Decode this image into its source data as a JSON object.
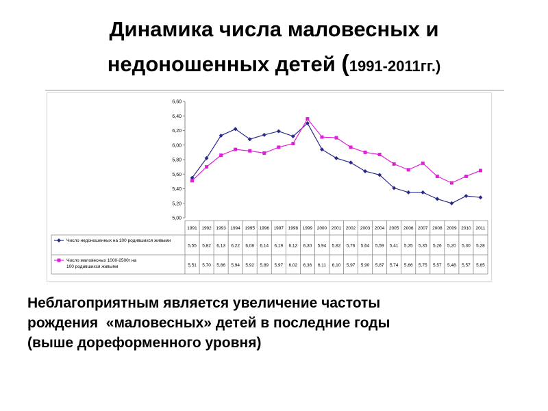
{
  "slide": {
    "title_line1": "Динамика числа маловесных и",
    "title_line2_main": "недоношенных детей ",
    "title_line2_paren": "(",
    "title_line2_years": "1991-2011гг.)",
    "caption_lines": [
      "Неблагоприятным является увеличение частоты",
      "рождения  «маловесных» детей в последние годы",
      "(выше дореформенного уровня)"
    ]
  },
  "chart_data": {
    "type": "line",
    "title": "",
    "xlabel": "",
    "ylabel": "",
    "categories": [
      "1991",
      "1992",
      "1993",
      "1994",
      "1995",
      "1996",
      "1997",
      "1998",
      "1999",
      "2000",
      "2001",
      "2002",
      "2003",
      "2004",
      "2005",
      "2006",
      "2007",
      "2008",
      "2009",
      "2010",
      "2011"
    ],
    "ylim": [
      5.0,
      6.6
    ],
    "yticks": [
      "5,00",
      "5,20",
      "5,40",
      "5,60",
      "5,80",
      "6,00",
      "6,20",
      "6,40",
      "6,60"
    ],
    "grid": false,
    "legend": "table-below",
    "series": [
      {
        "name": "Число недоношенных на 100 родившихся живыми",
        "color": "#2a2a8c",
        "marker": "diamond",
        "values": [
          5.55,
          5.82,
          6.13,
          6.22,
          6.08,
          6.14,
          6.19,
          6.12,
          6.3,
          5.94,
          5.82,
          5.76,
          5.64,
          5.59,
          5.41,
          5.35,
          5.35,
          5.26,
          5.2,
          5.3,
          5.28
        ],
        "labels": [
          "5,55",
          "5,82",
          "6,13",
          "6,22",
          "6,08",
          "6,14",
          "6,19",
          "6,12",
          "6,30",
          "5,94",
          "5,82",
          "5,76",
          "5,64",
          "5,59",
          "5,41",
          "5,35",
          "5,35",
          "5,26",
          "5,20",
          "5,30",
          "5,28"
        ]
      },
      {
        "name": "Число маловесных 1000-2500г на 100 родившихся живыми",
        "color": "#e020d8",
        "marker": "square",
        "values": [
          5.51,
          5.7,
          5.86,
          5.94,
          5.92,
          5.89,
          5.97,
          6.02,
          6.36,
          6.11,
          6.1,
          5.97,
          5.9,
          5.87,
          5.74,
          5.66,
          5.75,
          5.57,
          5.48,
          5.57,
          5.65
        ],
        "labels": [
          "5,51",
          "5,70",
          "5,86",
          "5,94",
          "5,92",
          "5,89",
          "5,97",
          "6,02",
          "6,36",
          "6,11",
          "6,10",
          "5,97",
          "5,90",
          "5,87",
          "5,74",
          "5,66",
          "5,75",
          "5,57",
          "5,48",
          "5,57",
          "5,65"
        ]
      }
    ]
  }
}
